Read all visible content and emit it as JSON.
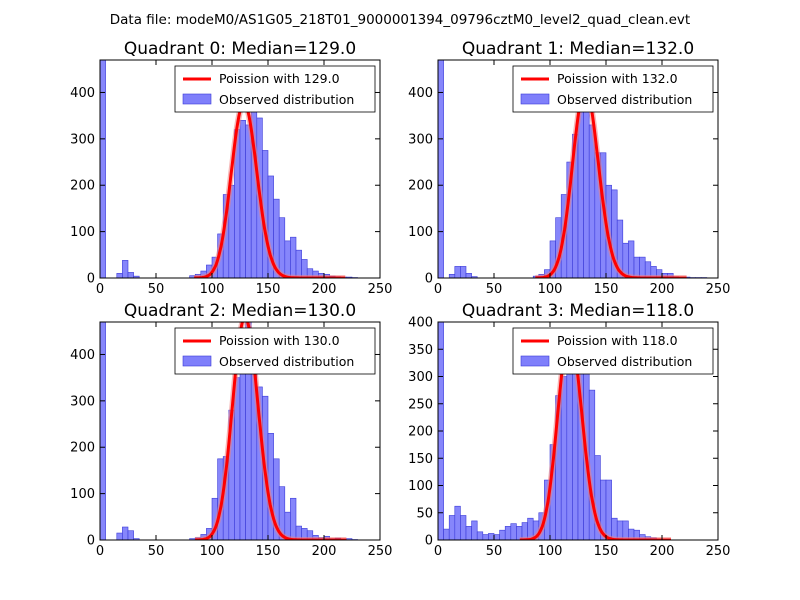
{
  "figure_title": "Data file: modeM0/AS1G05_218T01_9000001394_09796cztM0_level2_quad_clean.evt",
  "colors": {
    "bar_fill": "#7f7ffb",
    "bar_stroke": "#3a3ad8",
    "curve": "#ff0000",
    "curve_highlight": "#f08080"
  },
  "chart_data": [
    {
      "type": "bar",
      "title": "Quadrant 0: Median=129.0",
      "median": 129.0,
      "xlim": [
        0,
        250
      ],
      "ylim": [
        0,
        470
      ],
      "xticks": [
        0,
        50,
        100,
        150,
        200,
        250
      ],
      "yticks": [
        0,
        100,
        200,
        300,
        400
      ],
      "bin_width": 5,
      "legend": {
        "position": "upper-right",
        "entries": [
          "Poission with 129.0",
          "Observed distribution"
        ]
      },
      "histogram": [
        {
          "x": 0,
          "y": 470
        },
        {
          "x": 15,
          "y": 10
        },
        {
          "x": 20,
          "y": 38
        },
        {
          "x": 25,
          "y": 12
        },
        {
          "x": 30,
          "y": 4
        },
        {
          "x": 80,
          "y": 5
        },
        {
          "x": 85,
          "y": 8
        },
        {
          "x": 90,
          "y": 15
        },
        {
          "x": 95,
          "y": 28
        },
        {
          "x": 100,
          "y": 45
        },
        {
          "x": 105,
          "y": 95
        },
        {
          "x": 110,
          "y": 180
        },
        {
          "x": 115,
          "y": 200
        },
        {
          "x": 120,
          "y": 320
        },
        {
          "x": 125,
          "y": 340
        },
        {
          "x": 130,
          "y": 330
        },
        {
          "x": 135,
          "y": 370
        },
        {
          "x": 140,
          "y": 345
        },
        {
          "x": 145,
          "y": 275
        },
        {
          "x": 150,
          "y": 220
        },
        {
          "x": 155,
          "y": 170
        },
        {
          "x": 160,
          "y": 130
        },
        {
          "x": 165,
          "y": 80
        },
        {
          "x": 170,
          "y": 88
        },
        {
          "x": 175,
          "y": 60
        },
        {
          "x": 180,
          "y": 40
        },
        {
          "x": 185,
          "y": 20
        },
        {
          "x": 190,
          "y": 15
        },
        {
          "x": 195,
          "y": 10
        },
        {
          "x": 200,
          "y": 8
        },
        {
          "x": 205,
          "y": 4
        },
        {
          "x": 210,
          "y": 3
        },
        {
          "x": 215,
          "y": 2
        },
        {
          "x": 220,
          "y": 2
        },
        {
          "x": 225,
          "y": 1
        }
      ]
    },
    {
      "type": "bar",
      "title": "Quadrant 1: Median=132.0",
      "median": 132.0,
      "xlim": [
        0,
        250
      ],
      "ylim": [
        0,
        470
      ],
      "xticks": [
        0,
        50,
        100,
        150,
        200,
        250
      ],
      "yticks": [
        0,
        100,
        200,
        300,
        400
      ],
      "bin_width": 5,
      "legend": {
        "position": "upper-right",
        "entries": [
          "Poission with 132.0",
          "Observed distribution"
        ]
      },
      "histogram": [
        {
          "x": 0,
          "y": 470
        },
        {
          "x": 10,
          "y": 8
        },
        {
          "x": 15,
          "y": 25
        },
        {
          "x": 20,
          "y": 25
        },
        {
          "x": 25,
          "y": 10
        },
        {
          "x": 30,
          "y": 3
        },
        {
          "x": 85,
          "y": 4
        },
        {
          "x": 90,
          "y": 8
        },
        {
          "x": 95,
          "y": 18
        },
        {
          "x": 100,
          "y": 80
        },
        {
          "x": 105,
          "y": 130
        },
        {
          "x": 110,
          "y": 180
        },
        {
          "x": 115,
          "y": 250
        },
        {
          "x": 120,
          "y": 310
        },
        {
          "x": 125,
          "y": 400
        },
        {
          "x": 130,
          "y": 385
        },
        {
          "x": 135,
          "y": 330
        },
        {
          "x": 140,
          "y": 270
        },
        {
          "x": 145,
          "y": 270
        },
        {
          "x": 150,
          "y": 200
        },
        {
          "x": 155,
          "y": 190
        },
        {
          "x": 160,
          "y": 125
        },
        {
          "x": 165,
          "y": 75
        },
        {
          "x": 170,
          "y": 80
        },
        {
          "x": 175,
          "y": 45
        },
        {
          "x": 180,
          "y": 45
        },
        {
          "x": 185,
          "y": 35
        },
        {
          "x": 190,
          "y": 25
        },
        {
          "x": 195,
          "y": 18
        },
        {
          "x": 200,
          "y": 10
        },
        {
          "x": 205,
          "y": 10
        },
        {
          "x": 210,
          "y": 3
        },
        {
          "x": 215,
          "y": 2
        },
        {
          "x": 220,
          "y": 2
        },
        {
          "x": 225,
          "y": 1
        },
        {
          "x": 230,
          "y": 1
        },
        {
          "x": 235,
          "y": 1
        }
      ]
    },
    {
      "type": "bar",
      "title": "Quadrant 2: Median=130.0",
      "median": 130.0,
      "xlim": [
        0,
        250
      ],
      "ylim": [
        0,
        470
      ],
      "xticks": [
        0,
        50,
        100,
        150,
        200,
        250
      ],
      "yticks": [
        0,
        100,
        200,
        300,
        400
      ],
      "bin_width": 5,
      "legend": {
        "position": "upper-right",
        "entries": [
          "Poission with 130.0",
          "Observed distribution"
        ]
      },
      "histogram": [
        {
          "x": 0,
          "y": 470
        },
        {
          "x": 15,
          "y": 15
        },
        {
          "x": 20,
          "y": 28
        },
        {
          "x": 25,
          "y": 20
        },
        {
          "x": 30,
          "y": 3
        },
        {
          "x": 80,
          "y": 3
        },
        {
          "x": 85,
          "y": 5
        },
        {
          "x": 90,
          "y": 12
        },
        {
          "x": 95,
          "y": 25
        },
        {
          "x": 100,
          "y": 90
        },
        {
          "x": 105,
          "y": 175
        },
        {
          "x": 110,
          "y": 180
        },
        {
          "x": 115,
          "y": 280
        },
        {
          "x": 120,
          "y": 350
        },
        {
          "x": 125,
          "y": 380
        },
        {
          "x": 130,
          "y": 470
        },
        {
          "x": 135,
          "y": 380
        },
        {
          "x": 140,
          "y": 330
        },
        {
          "x": 145,
          "y": 310
        },
        {
          "x": 150,
          "y": 230
        },
        {
          "x": 155,
          "y": 175
        },
        {
          "x": 160,
          "y": 115
        },
        {
          "x": 165,
          "y": 60
        },
        {
          "x": 170,
          "y": 90
        },
        {
          "x": 175,
          "y": 30
        },
        {
          "x": 180,
          "y": 25
        },
        {
          "x": 185,
          "y": 20
        },
        {
          "x": 190,
          "y": 10
        },
        {
          "x": 195,
          "y": 5
        },
        {
          "x": 200,
          "y": 8
        },
        {
          "x": 205,
          "y": 3
        },
        {
          "x": 210,
          "y": 4
        },
        {
          "x": 215,
          "y": 2
        },
        {
          "x": 220,
          "y": 3
        },
        {
          "x": 225,
          "y": 1
        }
      ]
    },
    {
      "type": "bar",
      "title": "Quadrant 3: Median=118.0",
      "median": 118.0,
      "xlim": [
        0,
        250
      ],
      "ylim": [
        0,
        400
      ],
      "xticks": [
        0,
        50,
        100,
        150,
        200,
        250
      ],
      "yticks": [
        0,
        50,
        100,
        150,
        200,
        250,
        300,
        350,
        400
      ],
      "bin_width": 5,
      "legend": {
        "position": "upper-right",
        "entries": [
          "Poission with 118.0",
          "Observed distribution"
        ]
      },
      "histogram": [
        {
          "x": 0,
          "y": 400
        },
        {
          "x": 5,
          "y": 20
        },
        {
          "x": 10,
          "y": 45
        },
        {
          "x": 15,
          "y": 62
        },
        {
          "x": 20,
          "y": 45
        },
        {
          "x": 25,
          "y": 25
        },
        {
          "x": 30,
          "y": 35
        },
        {
          "x": 35,
          "y": 15
        },
        {
          "x": 40,
          "y": 10
        },
        {
          "x": 45,
          "y": 12
        },
        {
          "x": 50,
          "y": 10
        },
        {
          "x": 55,
          "y": 18
        },
        {
          "x": 60,
          "y": 25
        },
        {
          "x": 65,
          "y": 30
        },
        {
          "x": 70,
          "y": 25
        },
        {
          "x": 75,
          "y": 32
        },
        {
          "x": 80,
          "y": 40
        },
        {
          "x": 85,
          "y": 35
        },
        {
          "x": 90,
          "y": 50
        },
        {
          "x": 95,
          "y": 110
        },
        {
          "x": 100,
          "y": 175
        },
        {
          "x": 105,
          "y": 265
        },
        {
          "x": 110,
          "y": 300
        },
        {
          "x": 115,
          "y": 370
        },
        {
          "x": 120,
          "y": 355
        },
        {
          "x": 125,
          "y": 350
        },
        {
          "x": 130,
          "y": 350
        },
        {
          "x": 135,
          "y": 275
        },
        {
          "x": 140,
          "y": 155
        },
        {
          "x": 145,
          "y": 110
        },
        {
          "x": 150,
          "y": 110
        },
        {
          "x": 155,
          "y": 40
        },
        {
          "x": 160,
          "y": 35
        },
        {
          "x": 165,
          "y": 35
        },
        {
          "x": 170,
          "y": 20
        },
        {
          "x": 175,
          "y": 18
        },
        {
          "x": 180,
          "y": 10
        },
        {
          "x": 185,
          "y": 6
        },
        {
          "x": 190,
          "y": 4
        },
        {
          "x": 195,
          "y": 2
        },
        {
          "x": 200,
          "y": 1
        }
      ]
    }
  ]
}
